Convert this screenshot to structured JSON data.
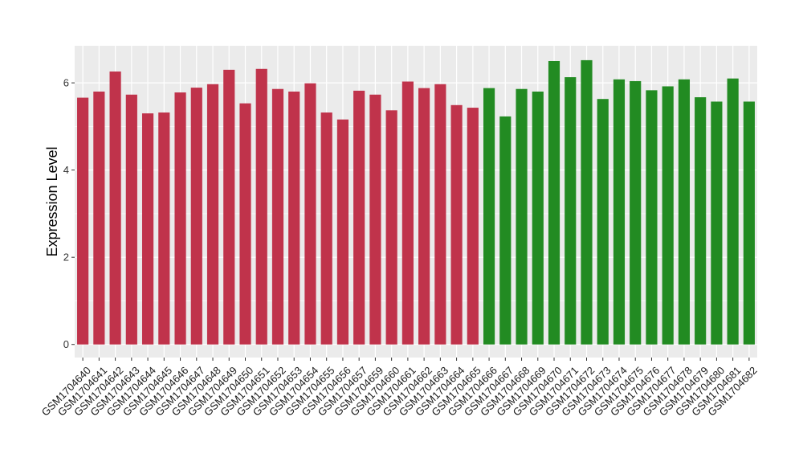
{
  "chart_data": {
    "type": "bar",
    "ylabel": "Expression Level",
    "xlabel": "",
    "ylim": [
      -0.3,
      6.85
    ],
    "yticks": [
      0,
      2,
      4,
      6
    ],
    "grid": true,
    "panel_background": "#ebebeb",
    "grid_color": "#ffffff",
    "categories": [
      "GSM1704640",
      "GSM1704641",
      "GSM1704642",
      "GSM1704643",
      "GSM1704644",
      "GSM1704645",
      "GSM1704646",
      "GSM1704647",
      "GSM1704648",
      "GSM1704649",
      "GSM1704650",
      "GSM1704651",
      "GSM1704652",
      "GSM1704653",
      "GSM1704654",
      "GSM1704655",
      "GSM1704656",
      "GSM1704657",
      "GSM1704659",
      "GSM1704660",
      "GSM1704661",
      "GSM1704662",
      "GSM1704663",
      "GSM1704664",
      "GSM1704665",
      "GSM1704666",
      "GSM1704667",
      "GSM1704668",
      "GSM1704669",
      "GSM1704670",
      "GSM1704671",
      "GSM1704672",
      "GSM1704673",
      "GSM1704674",
      "GSM1704675",
      "GSM1704676",
      "GSM1704677",
      "GSM1704678",
      "GSM1704679",
      "GSM1704680",
      "GSM1704681",
      "GSM1704682"
    ],
    "values": [
      5.66,
      5.8,
      6.26,
      5.73,
      5.3,
      5.32,
      5.78,
      5.89,
      5.97,
      6.3,
      5.53,
      6.32,
      5.86,
      5.8,
      5.99,
      5.32,
      5.16,
      5.82,
      5.73,
      5.37,
      6.03,
      5.88,
      5.97,
      5.49,
      5.43,
      5.88,
      5.23,
      5.86,
      5.8,
      6.5,
      6.13,
      6.52,
      5.63,
      6.08,
      6.04,
      5.83,
      5.92,
      6.08,
      5.67,
      5.57,
      6.1,
      5.57
    ],
    "colors": [
      "#c0334b",
      "#c0334b",
      "#c0334b",
      "#c0334b",
      "#c0334b",
      "#c0334b",
      "#c0334b",
      "#c0334b",
      "#c0334b",
      "#c0334b",
      "#c0334b",
      "#c0334b",
      "#c0334b",
      "#c0334b",
      "#c0334b",
      "#c0334b",
      "#c0334b",
      "#c0334b",
      "#c0334b",
      "#c0334b",
      "#c0334b",
      "#c0334b",
      "#c0334b",
      "#c0334b",
      "#c0334b",
      "#228b22",
      "#228b22",
      "#228b22",
      "#228b22",
      "#228b22",
      "#228b22",
      "#228b22",
      "#228b22",
      "#228b22",
      "#228b22",
      "#228b22",
      "#228b22",
      "#228b22",
      "#228b22",
      "#228b22",
      "#228b22",
      "#228b22"
    ]
  }
}
